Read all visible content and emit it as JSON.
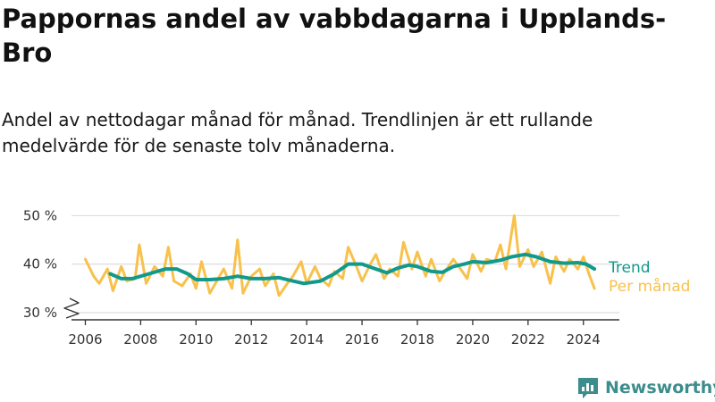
{
  "title": "Pappornas andel av vabbdagarna i Upplands-Bro",
  "subtitle": "Andel av nettodagar månad för månad. Trendlinjen är ett rullande medelvärde för de senaste tolv månaderna.",
  "brand": "Newsworthy",
  "colors": {
    "monthly": "#f8c14c",
    "trend": "#11998c",
    "axis": "#333333",
    "grid": "#dddddd",
    "brand": "#3c8d8c"
  },
  "chart_data": {
    "type": "line",
    "title": "Pappornas andel av vabbdagarna i Upplands-Bro",
    "xlabel": "",
    "ylabel": "",
    "xlim": [
      2005.5,
      2025.3
    ],
    "ylim": [
      28.5,
      51
    ],
    "y_axis_break": true,
    "grid": "horizontal",
    "legend": "right, labels at line ends",
    "x_ticks": [
      2006,
      2008,
      2010,
      2012,
      2014,
      2016,
      2018,
      2020,
      2022,
      2024
    ],
    "x_tick_labels": [
      "2006",
      "2008",
      "2010",
      "2012",
      "2014",
      "2016",
      "2018",
      "2020",
      "2022",
      "2024"
    ],
    "y_ticks": [
      30,
      40,
      50
    ],
    "y_tick_labels": [
      "30 %",
      "40 %",
      "50 %"
    ],
    "series": [
      {
        "name": "Per månad",
        "color": "#f8c14c",
        "points": [
          [
            2006.0,
            41
          ],
          [
            2006.3,
            37.5
          ],
          [
            2006.5,
            36
          ],
          [
            2006.8,
            39
          ],
          [
            2007.0,
            34.5
          ],
          [
            2007.3,
            39.5
          ],
          [
            2007.5,
            36.5
          ],
          [
            2007.8,
            37
          ],
          [
            2007.95,
            44
          ],
          [
            2008.2,
            36
          ],
          [
            2008.5,
            39.5
          ],
          [
            2008.8,
            37.5
          ],
          [
            2009.0,
            43.5
          ],
          [
            2009.2,
            36.5
          ],
          [
            2009.5,
            35.5
          ],
          [
            2009.8,
            38
          ],
          [
            2010.0,
            35
          ],
          [
            2010.2,
            40.5
          ],
          [
            2010.5,
            34
          ],
          [
            2010.8,
            37
          ],
          [
            2011.0,
            39
          ],
          [
            2011.3,
            35
          ],
          [
            2011.5,
            45
          ],
          [
            2011.7,
            34
          ],
          [
            2012.0,
            37.5
          ],
          [
            2012.3,
            39
          ],
          [
            2012.5,
            35.5
          ],
          [
            2012.8,
            38
          ],
          [
            2013.0,
            33.5
          ],
          [
            2013.3,
            36
          ],
          [
            2013.5,
            37.5
          ],
          [
            2013.8,
            40.5
          ],
          [
            2014.0,
            36
          ],
          [
            2014.3,
            39.5
          ],
          [
            2014.5,
            37
          ],
          [
            2014.8,
            35.5
          ],
          [
            2015.0,
            38.5
          ],
          [
            2015.3,
            37
          ],
          [
            2015.5,
            43.5
          ],
          [
            2015.8,
            39.5
          ],
          [
            2016.0,
            36.5
          ],
          [
            2016.3,
            40
          ],
          [
            2016.5,
            42
          ],
          [
            2016.8,
            37
          ],
          [
            2017.0,
            39
          ],
          [
            2017.3,
            37.5
          ],
          [
            2017.5,
            44.5
          ],
          [
            2017.8,
            39
          ],
          [
            2018.0,
            42.5
          ],
          [
            2018.3,
            37.5
          ],
          [
            2018.5,
            41
          ],
          [
            2018.8,
            36.5
          ],
          [
            2019.0,
            38.5
          ],
          [
            2019.3,
            41
          ],
          [
            2019.5,
            39.5
          ],
          [
            2019.8,
            37
          ],
          [
            2020.0,
            42
          ],
          [
            2020.3,
            38.5
          ],
          [
            2020.5,
            41
          ],
          [
            2020.8,
            40.5
          ],
          [
            2021.0,
            44
          ],
          [
            2021.2,
            39
          ],
          [
            2021.5,
            50
          ],
          [
            2021.7,
            39.5
          ],
          [
            2022.0,
            43
          ],
          [
            2022.2,
            39.5
          ],
          [
            2022.5,
            42.5
          ],
          [
            2022.8,
            36
          ],
          [
            2023.0,
            41.5
          ],
          [
            2023.3,
            38.5
          ],
          [
            2023.5,
            41
          ],
          [
            2023.8,
            39
          ],
          [
            2024.0,
            41.5
          ],
          [
            2024.2,
            38
          ],
          [
            2024.4,
            35
          ]
        ]
      },
      {
        "name": "Trend",
        "color": "#11998c",
        "points": [
          [
            2006.9,
            38
          ],
          [
            2007.3,
            37
          ],
          [
            2007.7,
            37
          ],
          [
            2008.3,
            38
          ],
          [
            2008.9,
            39
          ],
          [
            2009.3,
            39
          ],
          [
            2009.7,
            38
          ],
          [
            2010.0,
            36.8
          ],
          [
            2010.5,
            36.8
          ],
          [
            2011.0,
            37
          ],
          [
            2011.5,
            37.5
          ],
          [
            2012.0,
            37
          ],
          [
            2012.5,
            37
          ],
          [
            2013.0,
            37.2
          ],
          [
            2013.5,
            36.5
          ],
          [
            2013.9,
            36
          ],
          [
            2014.5,
            36.5
          ],
          [
            2015.0,
            38
          ],
          [
            2015.5,
            40
          ],
          [
            2016.0,
            40
          ],
          [
            2016.5,
            39
          ],
          [
            2016.9,
            38.2
          ],
          [
            2017.3,
            39.2
          ],
          [
            2017.7,
            39.8
          ],
          [
            2018.0,
            39.5
          ],
          [
            2018.5,
            38.5
          ],
          [
            2018.9,
            38.3
          ],
          [
            2019.3,
            39.5
          ],
          [
            2019.7,
            40
          ],
          [
            2020.0,
            40.5
          ],
          [
            2020.5,
            40.3
          ],
          [
            2021.0,
            40.8
          ],
          [
            2021.4,
            41.5
          ],
          [
            2021.9,
            42
          ],
          [
            2022.3,
            41.5
          ],
          [
            2022.8,
            40.5
          ],
          [
            2023.3,
            40.2
          ],
          [
            2023.8,
            40.3
          ],
          [
            2024.1,
            40
          ],
          [
            2024.4,
            39
          ]
        ]
      }
    ]
  }
}
